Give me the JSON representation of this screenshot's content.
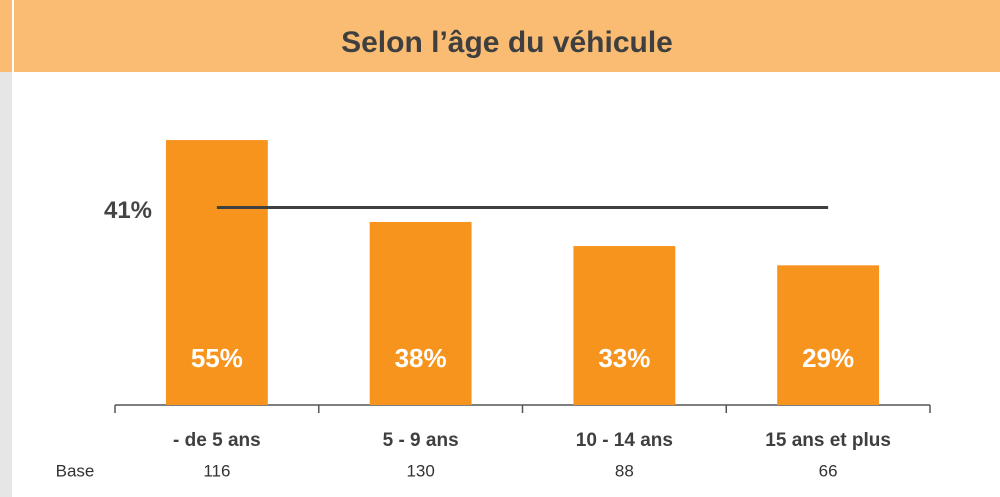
{
  "chart_data": {
    "type": "bar",
    "title": "Selon l’âge du véhicule",
    "categories": [
      "- de 5 ans",
      "5 - 9 ans",
      "10 - 14 ans",
      "15 ans et plus"
    ],
    "values": [
      55,
      38,
      33,
      29
    ],
    "value_labels": [
      "55%",
      "38%",
      "33%",
      "29%"
    ],
    "color": "#f7941d",
    "ylim": [
      0,
      60
    ],
    "reference_line": {
      "value": 41,
      "label": "41%",
      "color": "#404040"
    },
    "base": {
      "label": "Base",
      "values": [
        116,
        130,
        88,
        66
      ]
    }
  }
}
